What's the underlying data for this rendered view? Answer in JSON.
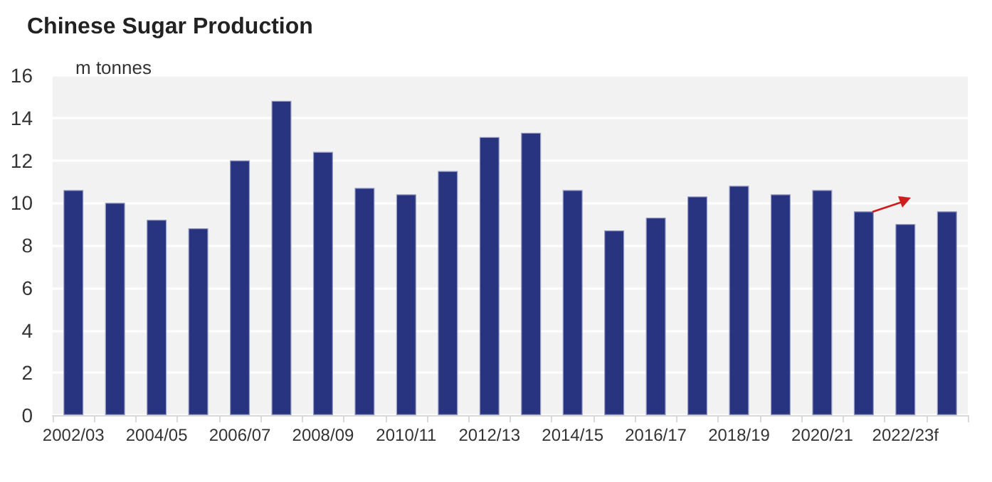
{
  "chart_data": {
    "type": "bar",
    "title": "Chinese Sugar Production",
    "ylabel": "m tonnes",
    "categories": [
      "2002/03",
      null,
      "2004/05",
      null,
      "2006/07",
      null,
      "2008/09",
      null,
      "2010/11",
      null,
      "2012/13",
      null,
      "2014/15",
      null,
      "2016/17",
      null,
      "2018/19",
      null,
      "2020/21",
      null,
      "2022/23f",
      null
    ],
    "values": [
      10.6,
      10.0,
      9.2,
      8.8,
      12.0,
      14.8,
      12.4,
      10.7,
      10.4,
      11.5,
      13.1,
      13.3,
      10.6,
      8.7,
      9.3,
      10.3,
      10.8,
      10.4,
      10.6,
      9.6,
      9.0,
      9.6
    ],
    "color": "#283480",
    "ylim": [
      0,
      16
    ],
    "yticks": [
      0,
      2,
      4,
      6,
      8,
      10,
      12,
      14,
      16
    ],
    "grid": "y"
  }
}
